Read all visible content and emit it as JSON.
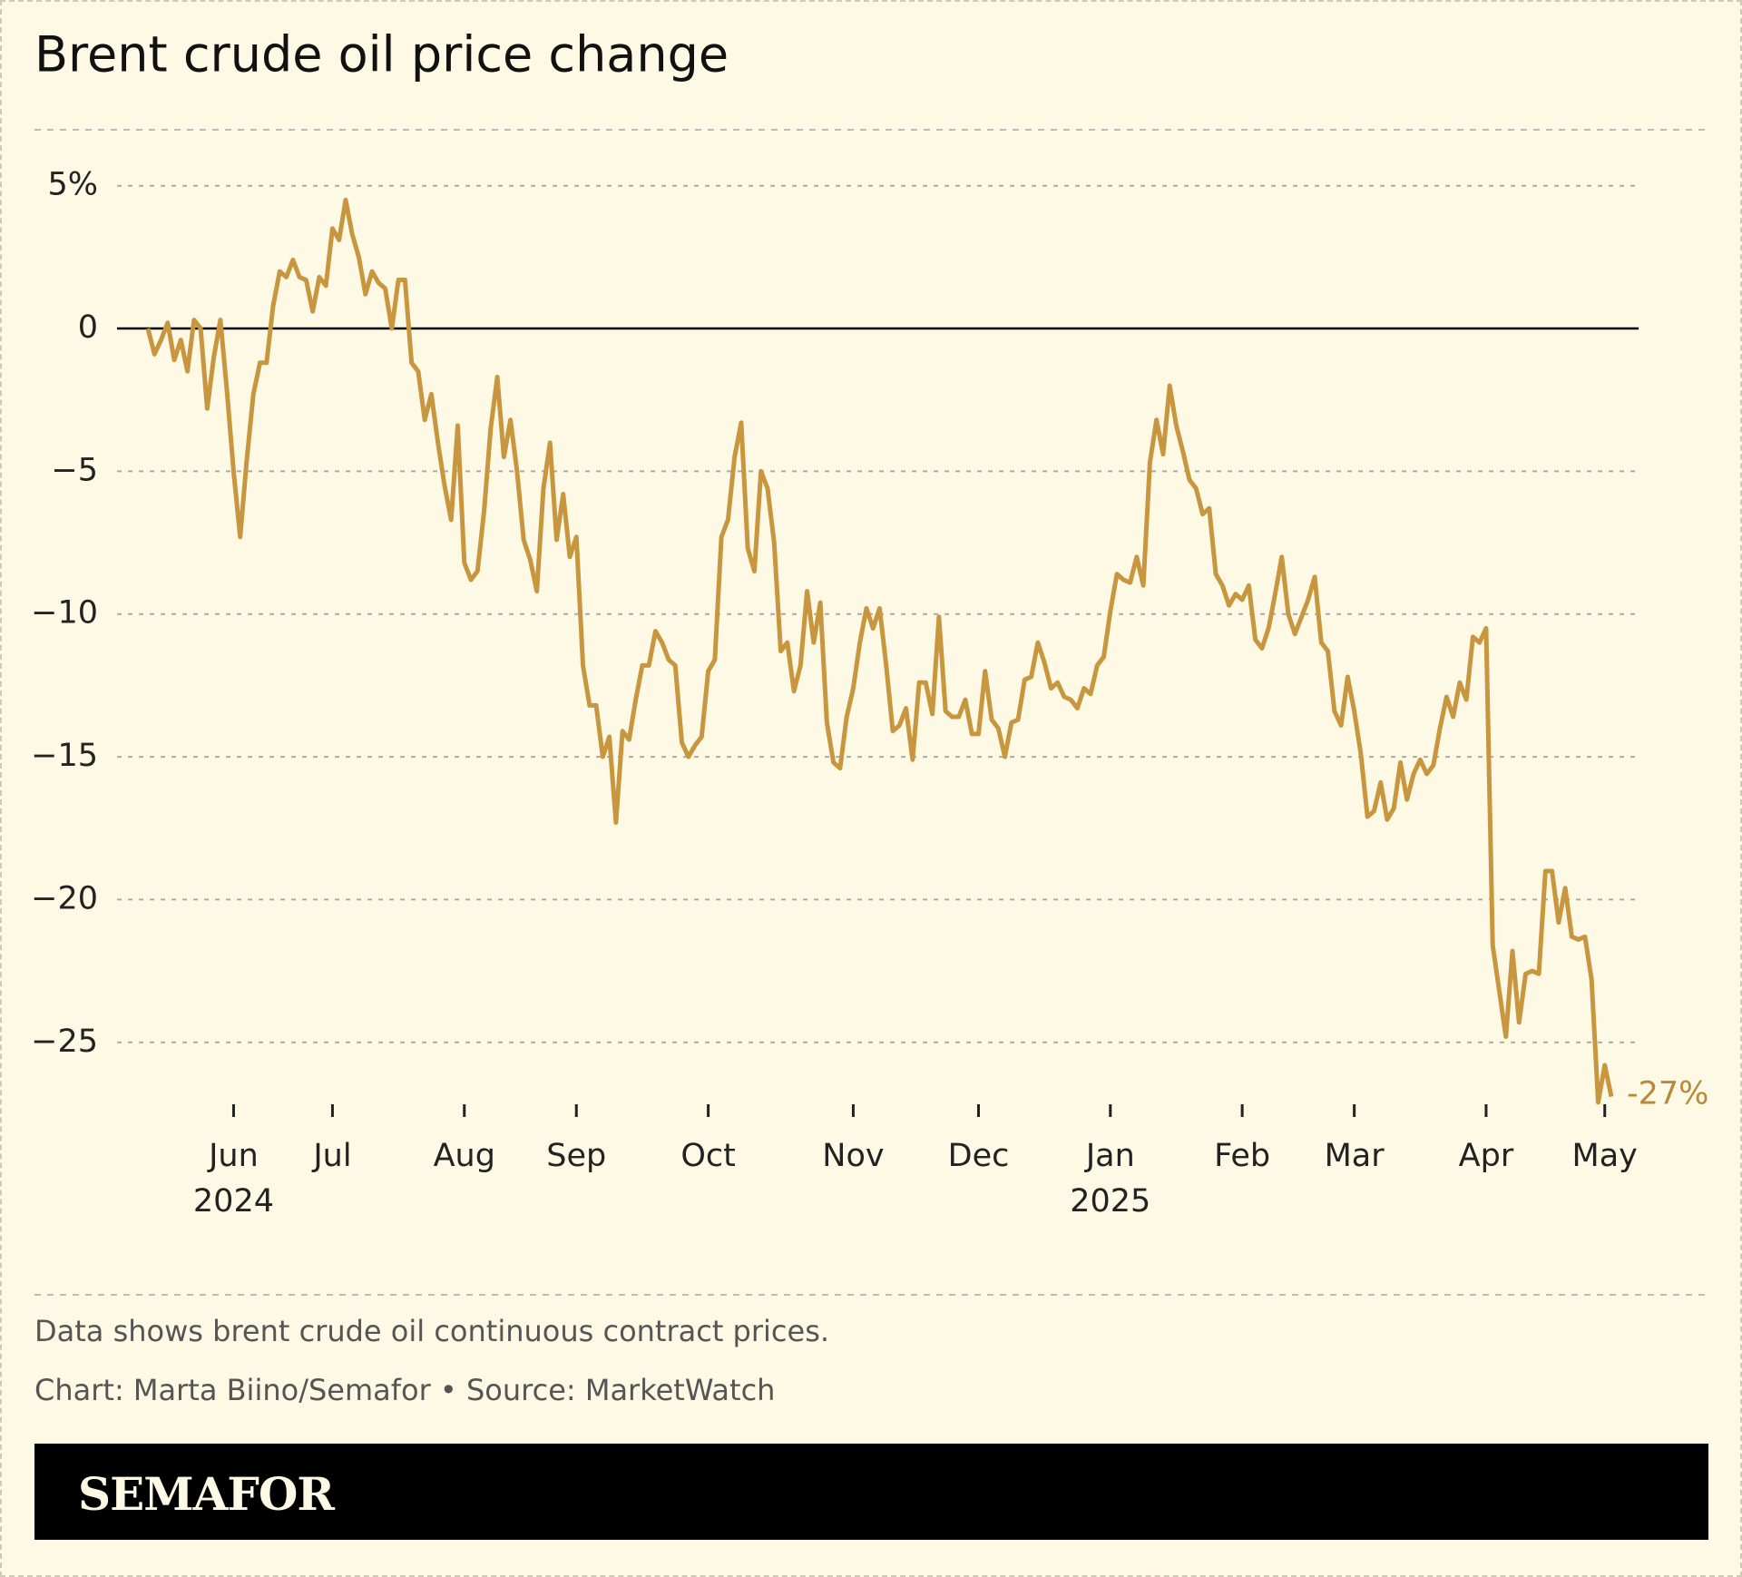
{
  "chart_data": {
    "type": "line",
    "title": "Brent crude oil price change",
    "categories": [
      null,
      null,
      null,
      null,
      null,
      null,
      null,
      null,
      null,
      null,
      null,
      null,
      null,
      "Jun\n2024",
      null,
      null,
      null,
      null,
      null,
      null,
      null,
      null,
      null,
      null,
      null,
      null,
      null,
      null,
      "Jul",
      null,
      null,
      null,
      null,
      null,
      null,
      null,
      null,
      null,
      null,
      null,
      null,
      null,
      null,
      null,
      null,
      null,
      null,
      null,
      "Aug",
      null,
      null,
      null,
      null,
      null,
      null,
      null,
      null,
      null,
      null,
      null,
      null,
      null,
      null,
      null,
      null,
      "Sep",
      null,
      null,
      null,
      null,
      null,
      null,
      null,
      null,
      null,
      null,
      null,
      null,
      null,
      null,
      null,
      null,
      null,
      null,
      null,
      "Oct",
      null,
      null,
      null,
      null,
      null,
      null,
      null,
      null,
      null,
      null,
      null,
      null,
      null,
      null,
      null,
      null,
      null,
      null,
      null,
      null,
      null,
      "Nov",
      null,
      null,
      null,
      null,
      null,
      null,
      null,
      null,
      null,
      null,
      null,
      null,
      null,
      null,
      null,
      null,
      null,
      null,
      "Dec",
      null,
      null,
      null,
      null,
      null,
      null,
      null,
      null,
      null,
      null,
      null,
      null,
      null,
      null,
      null,
      null,
      null,
      null,
      null,
      "Jan\n2025",
      null,
      null,
      null,
      null,
      null,
      null,
      null,
      null,
      null,
      null,
      null,
      null,
      null,
      null,
      null,
      null,
      null,
      null,
      null,
      "Feb",
      null,
      null,
      null,
      null,
      null,
      null,
      null,
      null,
      null,
      null,
      null,
      null,
      null,
      null,
      null,
      null,
      "Mar",
      null,
      null,
      null,
      null,
      null,
      null,
      null,
      null,
      null,
      null,
      null,
      null,
      null,
      null,
      null,
      null,
      null,
      null,
      null,
      "Apr",
      null,
      null,
      null,
      null,
      null,
      null,
      null,
      null,
      null,
      null,
      null,
      null,
      null,
      null,
      null,
      null,
      null,
      "May",
      null
    ],
    "values": [
      0,
      -0.9,
      -0.4,
      0.2,
      -1.1,
      -0.4,
      -1.5,
      0.3,
      0,
      -2.8,
      -1,
      0.3,
      -2.2,
      -5,
      -7.3,
      -4.6,
      -2.3,
      -1.2,
      -1.2,
      0.8,
      2,
      1.8,
      2.4,
      1.8,
      1.7,
      0.6,
      1.8,
      1.5,
      3.5,
      3.1,
      4.5,
      3.3,
      2.5,
      1.2,
      2,
      1.6,
      1.4,
      0,
      1.7,
      1.7,
      -1.2,
      -1.5,
      -3.2,
      -2.3,
      -4,
      -5.5,
      -6.7,
      -3.4,
      -8.2,
      -8.8,
      -8.5,
      -6.4,
      -3.5,
      -1.7,
      -4.5,
      -3.2,
      -5,
      -7.4,
      -8.1,
      -9.2,
      -5.6,
      -4,
      -7.4,
      -5.8,
      -8,
      -7.3,
      -11.8,
      -13.2,
      -13.2,
      -15,
      -14.3,
      -17.3,
      -14.1,
      -14.4,
      -13,
      -11.8,
      -11.8,
      -10.6,
      -11,
      -11.6,
      -11.8,
      -14.5,
      -15,
      -14.6,
      -14.3,
      -12,
      -11.6,
      -7.3,
      -6.7,
      -4.5,
      -3.3,
      -7.7,
      -8.5,
      -5,
      -5.6,
      -7.5,
      -11.3,
      -11,
      -12.7,
      -11.8,
      -9.2,
      -11,
      -9.6,
      -13.8,
      -15.2,
      -15.4,
      -13.6,
      -12.6,
      -11,
      -9.8,
      -10.5,
      -9.8,
      -11.8,
      -14.1,
      -13.9,
      -13.3,
      -15.1,
      -12.4,
      -12.4,
      -13.5,
      -10.1,
      -13.4,
      -13.6,
      -13.6,
      -13,
      -14.2,
      -14.2,
      -12,
      -13.7,
      -14,
      -15,
      -13.8,
      -13.7,
      -12.3,
      -12.2,
      -11,
      -11.7,
      -12.6,
      -12.4,
      -12.9,
      -13,
      -13.3,
      -12.6,
      -12.8,
      -11.8,
      -11.5,
      -9.9,
      -8.6,
      -8.8,
      -8.9,
      -8,
      -9,
      -4.7,
      -3.2,
      -4.4,
      -2,
      -3.4,
      -4.3,
      -5.3,
      -5.6,
      -6.5,
      -6.3,
      -8.6,
      -9,
      -9.7,
      -9.3,
      -9.5,
      -9,
      -10.9,
      -11.2,
      -10.5,
      -9.3,
      -8,
      -10,
      -10.7,
      -10.1,
      -9.5,
      -8.7,
      -11,
      -11.3,
      -13.4,
      -13.9,
      -12.2,
      -13.4,
      -14.9,
      -17.1,
      -16.9,
      -15.9,
      -17.2,
      -16.8,
      -15.2,
      -16.5,
      -15.6,
      -15.1,
      -15.6,
      -15.3,
      -14,
      -12.9,
      -13.6,
      -12.4,
      -13,
      -10.8,
      -11,
      -10.5,
      -21.6,
      -23.2,
      -24.8,
      -21.8,
      -24.3,
      -22.6,
      -22.5,
      -22.6,
      -19,
      -19,
      -20.8,
      -19.6,
      -21.3,
      -21.4,
      -21.3,
      -22.8,
      -27.1,
      -25.8,
      -26.9
    ],
    "color": "#c8963e",
    "end_label": "-27%",
    "ylim": [
      -27.2,
      5.2
    ],
    "yticks": [
      {
        "value": 5,
        "label": "5%"
      },
      0,
      {
        "value": -5,
        "label": "−5"
      },
      {
        "value": -10,
        "label": "−10"
      },
      {
        "value": -15,
        "label": "−15"
      },
      {
        "value": -20,
        "label": "−20"
      },
      {
        "value": -25,
        "label": "−25"
      }
    ],
    "grid": true
  },
  "notes": [
    "Data shows brent crude oil continuous contract prices.",
    "Chart: Marta Biino/Semafor • Source: MarketWatch"
  ],
  "brand": "SEMAFOR"
}
